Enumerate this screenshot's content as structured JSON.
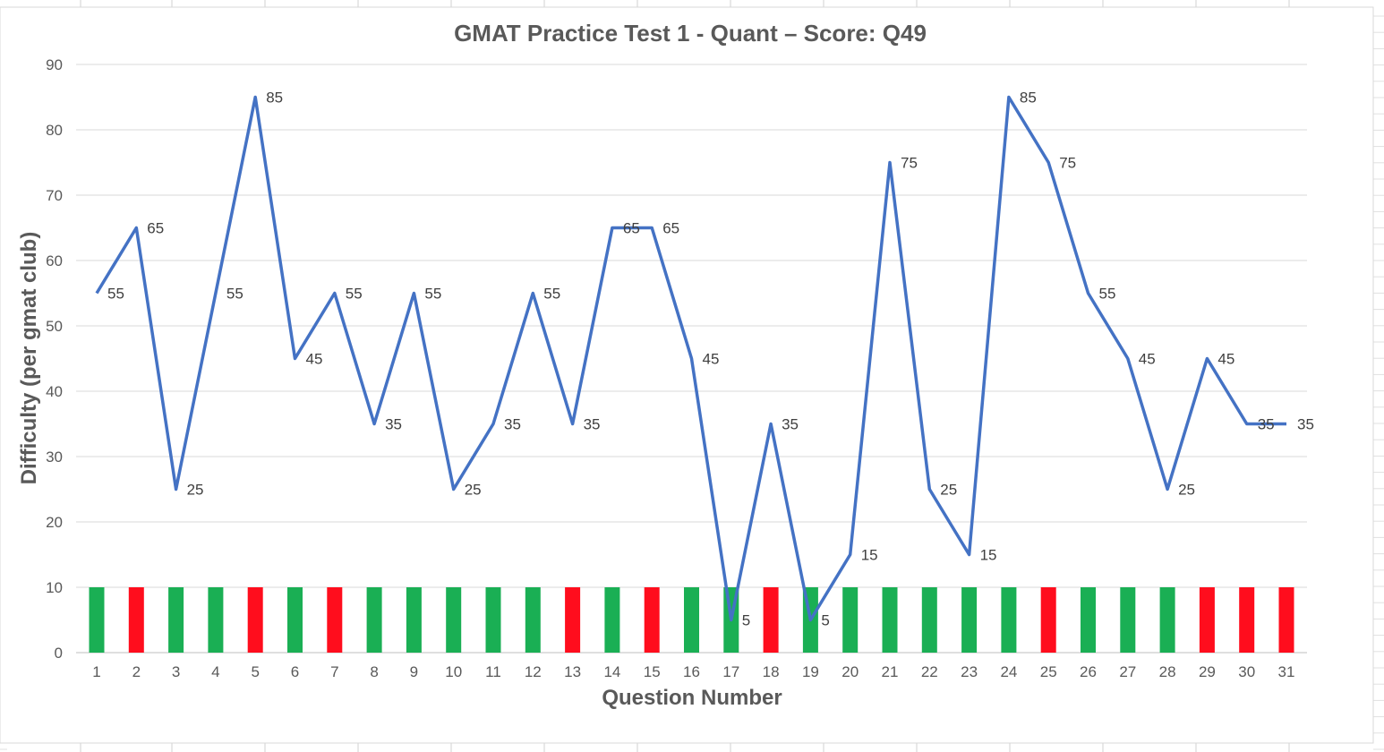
{
  "chart_data": {
    "type": "line",
    "title": "GMAT Practice Test 1 - Quant – Score: Q49",
    "xlabel": "Question Number",
    "ylabel": "Difficulty (per gmat club)",
    "ylim": [
      0,
      90
    ],
    "y_ticks": [
      0,
      10,
      20,
      30,
      40,
      50,
      60,
      70,
      80,
      90
    ],
    "grid": true,
    "legend": "none",
    "categories": [
      "1",
      "2",
      "3",
      "4",
      "5",
      "6",
      "7",
      "8",
      "9",
      "10",
      "11",
      "12",
      "13",
      "14",
      "15",
      "16",
      "17",
      "18",
      "19",
      "20",
      "21",
      "22",
      "23",
      "24",
      "25",
      "26",
      "27",
      "28",
      "29",
      "30",
      "31"
    ],
    "series": [
      {
        "type": "line",
        "color": "#4472C4",
        "values": [
          55,
          65,
          25,
          55,
          85,
          45,
          55,
          35,
          55,
          25,
          35,
          55,
          35,
          65,
          65,
          45,
          5,
          35,
          5,
          15,
          75,
          25,
          15,
          85,
          75,
          55,
          45,
          25,
          45,
          35,
          35
        ],
        "data_labels": [
          "55",
          "65",
          "25",
          "55",
          "85",
          "45",
          "55",
          "35",
          "55",
          "25",
          "35",
          "55",
          "35",
          "65",
          "65",
          "45",
          "5",
          "35",
          "5",
          "15",
          "75",
          "25",
          "15",
          "85",
          "75",
          "55",
          "45",
          "25",
          "45",
          "35",
          "35"
        ]
      },
      {
        "type": "bar",
        "value": 10,
        "correct": [
          true,
          false,
          true,
          true,
          false,
          true,
          false,
          true,
          true,
          true,
          true,
          true,
          false,
          true,
          false,
          true,
          true,
          false,
          true,
          true,
          true,
          true,
          true,
          true,
          false,
          true,
          true,
          true,
          false,
          false,
          false
        ],
        "colors": {
          "correct": "#1AAF54",
          "incorrect": "#FF0D1D"
        }
      }
    ]
  }
}
